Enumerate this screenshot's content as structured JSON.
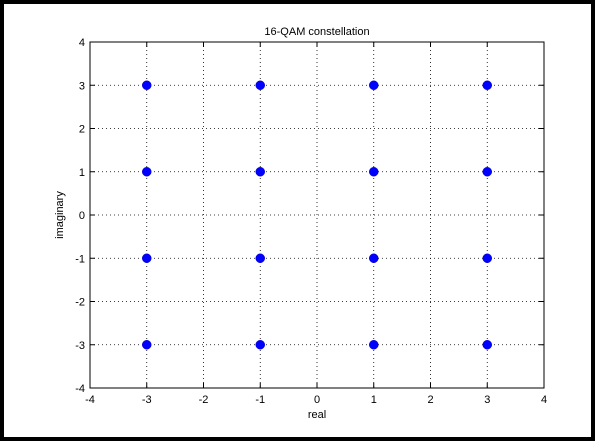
{
  "chart_data": {
    "type": "scatter",
    "title": "16-QAM constellation",
    "xlabel": "real",
    "ylabel": "imaginary",
    "xlim": [
      -4,
      4
    ],
    "ylim": [
      -4,
      4
    ],
    "xticks": [
      -4,
      -3,
      -2,
      -1,
      0,
      1,
      2,
      3,
      4
    ],
    "yticks": [
      -4,
      -3,
      -2,
      -1,
      0,
      1,
      2,
      3,
      4
    ],
    "xtick_labels": [
      "-4",
      "-3",
      "-2",
      "-1",
      "0",
      "1",
      "2",
      "3",
      "4"
    ],
    "ytick_labels": [
      "-4",
      "-3",
      "-2",
      "-1",
      "0",
      "1",
      "2",
      "3",
      "4"
    ],
    "grid": true,
    "grid_style": "dotted",
    "marker_color": "#0000ff",
    "series": [
      {
        "x": [
          -3,
          -1,
          1,
          3,
          -3,
          -1,
          1,
          3,
          -3,
          -1,
          1,
          3,
          -3,
          -1,
          1,
          3
        ],
        "y": [
          3,
          3,
          3,
          3,
          1,
          1,
          1,
          1,
          -1,
          -1,
          -1,
          -1,
          -3,
          -3,
          -3,
          -3
        ]
      }
    ]
  }
}
